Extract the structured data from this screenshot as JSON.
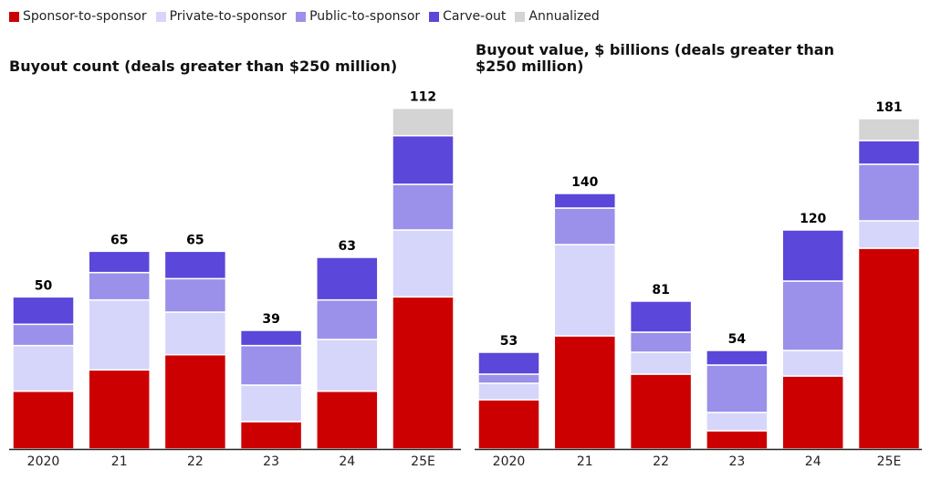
{
  "legend": [
    {
      "name": "Sponsor-to-sponsor",
      "color": "#cc0000"
    },
    {
      "name": "Private-to-sponsor",
      "color": "#d6d6fb"
    },
    {
      "name": "Public-to-sponsor",
      "color": "#9b90ea"
    },
    {
      "name": "Carve-out",
      "color": "#5b47d9"
    },
    {
      "name": "Annualized",
      "color": "#d4d4d4"
    }
  ],
  "chart_data": [
    {
      "type": "stacked-bar",
      "title": "Buyout count (deals greater than $250 million)",
      "categories": [
        "2020",
        "21",
        "22",
        "23",
        "24",
        "25E"
      ],
      "ylim": [
        0,
        120
      ],
      "series": [
        {
          "values": [
            19,
            26,
            31,
            9,
            19,
            50
          ]
        },
        {
          "values": [
            15,
            23,
            14,
            12,
            17,
            22
          ]
        },
        {
          "values": [
            7,
            9,
            11,
            13,
            13,
            15
          ]
        },
        {
          "values": [
            9,
            7,
            9,
            5,
            14,
            16
          ]
        },
        {
          "values": [
            null,
            null,
            null,
            null,
            null,
            9
          ]
        }
      ],
      "totals": [
        50,
        65,
        65,
        39,
        63,
        112
      ]
    },
    {
      "type": "stacked-bar",
      "title": "Buyout value, $ billions (deals greater than $250 million)",
      "categories": [
        "2020",
        "21",
        "22",
        "23",
        "24",
        "25E"
      ],
      "ylim": [
        0,
        200
      ],
      "series": [
        {
          "values": [
            27,
            62,
            41,
            10,
            40,
            110
          ]
        },
        {
          "values": [
            9,
            50,
            12,
            10,
            14,
            15
          ]
        },
        {
          "values": [
            5,
            20,
            11,
            26,
            38,
            31
          ]
        },
        {
          "values": [
            12,
            8,
            17,
            8,
            28,
            13
          ]
        },
        {
          "values": [
            null,
            null,
            null,
            null,
            null,
            12
          ]
        }
      ],
      "totals": [
        53,
        140,
        81,
        54,
        120,
        181
      ]
    }
  ]
}
